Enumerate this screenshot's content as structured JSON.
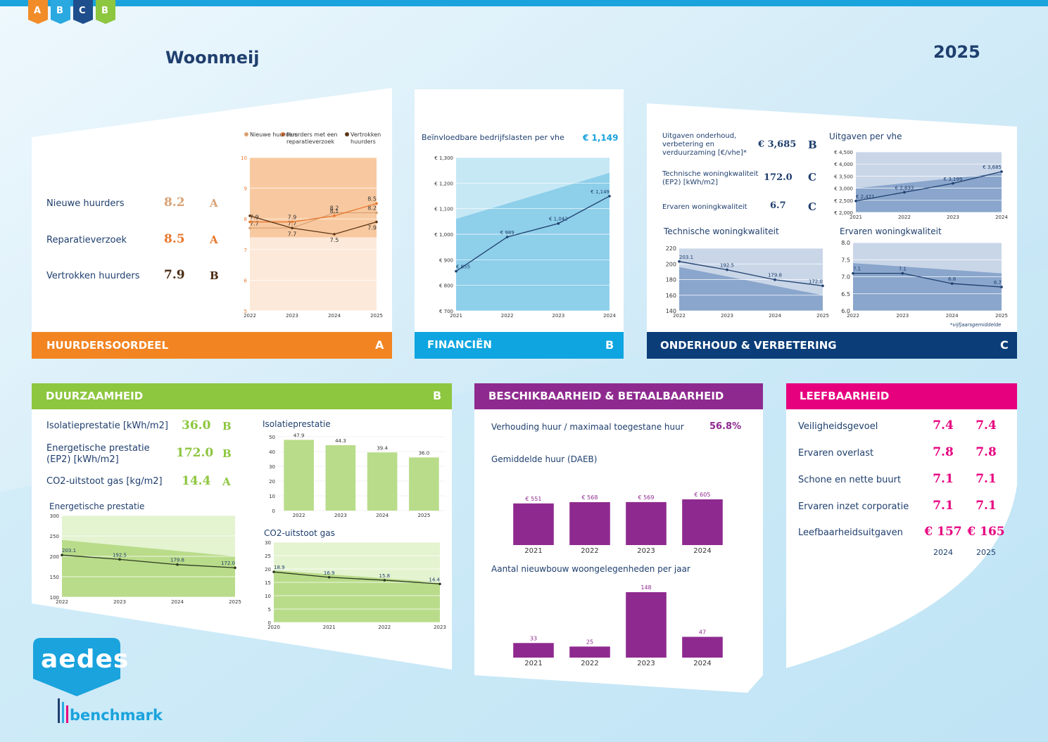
{
  "header": {
    "logo_letters": [
      "A",
      "B",
      "C",
      "B"
    ],
    "title": "Woonmeij",
    "year": "2025"
  },
  "huurdersoordeel": {
    "heading": "HUURDERSOORDEEL",
    "score": "A",
    "kpis": [
      {
        "label": "Nieuwe huurders",
        "value": "8.2",
        "score": "A"
      },
      {
        "label": "Reparatieverzoek",
        "value": "8.5",
        "score": "A"
      },
      {
        "label": "Vertrokken huurders",
        "value": "7.9",
        "score": "B"
      }
    ],
    "chart": {
      "type": "line",
      "categories": [
        "2022",
        "2023",
        "2024",
        "2025"
      ],
      "ylim": [
        5,
        10
      ],
      "yticks": [
        5,
        6,
        7,
        8,
        9,
        10
      ],
      "grid": true,
      "series": [
        {
          "name": "Nieuwe huurders",
          "color": "#d9a173",
          "values": [
            7.7,
            7.7,
            8.2,
            8.2
          ]
        },
        {
          "name": "Huurders met een reparatieverzoek",
          "color": "#e8772e",
          "values": [
            7.9,
            7.9,
            8.1,
            8.5
          ]
        },
        {
          "name": "Vertrokken huurders",
          "color": "#5a3515",
          "values": [
            8.1,
            7.7,
            7.5,
            7.9
          ],
          "value_labels": [
            null,
            "7.7",
            "7.5",
            "7.9"
          ]
        }
      ]
    }
  },
  "financien": {
    "heading": "FINANCIËN",
    "score": "B",
    "kpi": {
      "label": "Beïnvloedbare bedrijfslasten per vhe",
      "value": "€ 1,149"
    },
    "chart": {
      "type": "line",
      "categories": [
        "2021",
        "2022",
        "2023",
        "2024"
      ],
      "ylim": [
        700,
        1300
      ],
      "yticks": [
        {
          "value": 700,
          "label": "€ 700"
        },
        {
          "value": 800,
          "label": "€ 800"
        },
        {
          "value": 900,
          "label": "€ 900"
        },
        {
          "value": 1000,
          "label": "€ 1,000"
        },
        {
          "value": 1100,
          "label": "€ 1,100"
        },
        {
          "value": 1200,
          "label": "€ 1,200"
        },
        {
          "value": 1300,
          "label": "€ 1,300"
        }
      ],
      "grid": true,
      "series": [
        {
          "color": "#1f3f6e",
          "values": [
            855,
            989,
            1042,
            1149
          ],
          "value_labels": [
            "€ 855",
            "€ 989",
            "€ 1,042",
            "€ 1,149"
          ]
        }
      ]
    }
  },
  "onderhoud": {
    "heading": "ONDERHOUD & VERBETERING",
    "score": "C",
    "kpis": [
      {
        "label": "Uitgaven onderhoud, verbetering en verduurzaming [€/vhe]*",
        "value": "€ 3,685",
        "score": "B"
      },
      {
        "label": "Technische woningkwaliteit (EP2) [kWh/m2]",
        "value": "172.0",
        "score": "C"
      },
      {
        "label": "Ervaren woningkwaliteit",
        "value": "6.7",
        "score": "C"
      }
    ],
    "charts": [
      {
        "type": "line",
        "title": "Uitgaven per vhe",
        "categories": [
          "2021",
          "2022",
          "2023",
          "2024"
        ],
        "ylim": [
          2000,
          4500
        ],
        "yticks": [
          {
            "value": 2000,
            "label": "€ 2,000"
          },
          {
            "value": 2500,
            "label": "€ 2,500"
          },
          {
            "value": 3000,
            "label": "€ 3,000"
          },
          {
            "value": 3500,
            "label": "€ 3,500"
          },
          {
            "value": 4000,
            "label": "€ 4,000"
          },
          {
            "value": 4500,
            "label": "€ 4,500"
          }
        ],
        "grid": true,
        "series": [
          {
            "color": "#1f3f6e",
            "values": [
              2471,
              2833,
              3199,
              3685
            ],
            "value_labels": [
              "€ 2,471",
              "€ 2,833",
              "€ 3,199",
              "€ 3,685"
            ]
          }
        ]
      },
      {
        "type": "line",
        "title": "Technische woningkwaliteit",
        "categories": [
          "2022",
          "2023",
          "2024",
          "2025"
        ],
        "ylim": [
          140,
          220
        ],
        "yticks": [
          140,
          160,
          180,
          200,
          220
        ],
        "grid": true,
        "series": [
          {
            "color": "#1f3f6e",
            "values": [
              203.1,
              192.5,
              179.8,
              172.0
            ],
            "value_labels": [
              "203.1",
              "192.5",
              "179.8",
              "172.0"
            ]
          }
        ]
      },
      {
        "type": "line",
        "title": "Ervaren woningkwaliteit",
        "categories": [
          "2022",
          "2023",
          "2024",
          "2025"
        ],
        "ylim": [
          6,
          8
        ],
        "yticks": [
          {
            "value": 6,
            "label": "6.0"
          },
          6.5,
          {
            "value": 7,
            "label": "7.0"
          },
          7.5,
          {
            "value": 8,
            "label": "8.0"
          }
        ],
        "grid": true,
        "series": [
          {
            "color": "#1f3f6e",
            "values": [
              7.1,
              7.1,
              6.8,
              6.7
            ]
          }
        ]
      }
    ],
    "footnote": "*vijfjaarsgemiddelde"
  },
  "duurzaamheid": {
    "heading": "DUURZAAMHEID",
    "score": "B",
    "kpis": [
      {
        "label": "Isolatieprestatie [kWh/m2]",
        "value": "36.0",
        "score": "B"
      },
      {
        "label": "Energetische prestatie (EP2) [kWh/m2]",
        "value": "172.0",
        "score": "B"
      },
      {
        "label": "CO2-uitstoot gas [kg/m2]",
        "value": "14.4",
        "score": "A"
      }
    ],
    "charts": [
      {
        "type": "bar",
        "title": "Isolatieprestatie",
        "categories": [
          "2022",
          "2023",
          "2024",
          "2025"
        ],
        "ylim": [
          0,
          50
        ],
        "yticks": [
          0,
          10,
          20,
          30,
          40,
          50
        ],
        "grid": true,
        "series": [
          {
            "color": "#b9dc8a",
            "values": [
              47.9,
              44.3,
              39.4,
              36.0
            ],
            "value_labels": [
              "47.9",
              "44.3",
              "39.4",
              "36.0"
            ]
          }
        ]
      },
      {
        "type": "line",
        "title": "Energetische prestatie",
        "categories": [
          "2022",
          "2023",
          "2024",
          "2025"
        ],
        "ylim": [
          100,
          300
        ],
        "yticks": [
          100,
          150,
          200,
          250,
          300
        ],
        "grid": true,
        "series": [
          {
            "color": "#2d3a1f",
            "values": [
              203.1,
              192.5,
              179.8,
              172.0
            ],
            "value_labels": [
              "203.1",
              "192.5",
              "179.8",
              "172.0"
            ]
          }
        ]
      },
      {
        "type": "line",
        "title": "CO2-uitstoot gas",
        "categories": [
          "2020",
          "2021",
          "2022",
          "2023"
        ],
        "ylim": [
          0,
          30
        ],
        "yticks": [
          0,
          5,
          10,
          15,
          20,
          25,
          30
        ],
        "grid": true,
        "series": [
          {
            "color": "#2d3a1f",
            "values": [
              18.9,
              16.9,
              15.8,
              14.4
            ]
          }
        ]
      }
    ]
  },
  "beschikbaarheid": {
    "heading": "BESCHIKBAARHEID & BETAALBAARHEID",
    "kpi": {
      "label": "Verhouding huur / maximaal toegestane huur",
      "value": "56.8%"
    },
    "charts": [
      {
        "type": "bar",
        "title": "Gemiddelde huur (DAEB)",
        "categories": [
          "2021",
          "2022",
          "2023",
          "2024"
        ],
        "series": [
          {
            "color": "#8e2a8f",
            "values": [
              551,
              568,
              569,
              605
            ],
            "value_labels": [
              "€ 551",
              "€ 568",
              "€ 569",
              "€ 605"
            ]
          }
        ]
      },
      {
        "type": "bar",
        "title": "Aantal nieuwbouw woongelegenheden per jaar",
        "categories": [
          "2021",
          "2022",
          "2023",
          "2024"
        ],
        "series": [
          {
            "color": "#8e2a8f",
            "values": [
              33,
              25,
              148,
              47
            ]
          }
        ]
      }
    ]
  },
  "leefbaarheid": {
    "heading": "LEEFBAARHEID",
    "columns": [
      "2024",
      "2025"
    ],
    "rows": [
      {
        "label": "Veiligheidsgevoel",
        "values": [
          "7.4",
          "7.4"
        ]
      },
      {
        "label": "Ervaren overlast",
        "values": [
          "7.8",
          "7.8"
        ]
      },
      {
        "label": "Schone en nette buurt",
        "values": [
          "7.1",
          "7.1"
        ]
      },
      {
        "label": "Ervaren inzet corporatie",
        "values": [
          "7.1",
          "7.1"
        ]
      },
      {
        "label": "Leefbaarheidsuitgaven",
        "values": [
          "€ 157",
          "€ 165"
        ]
      }
    ]
  },
  "footer": {
    "logo": "aedes",
    "brand": "benchmark"
  }
}
